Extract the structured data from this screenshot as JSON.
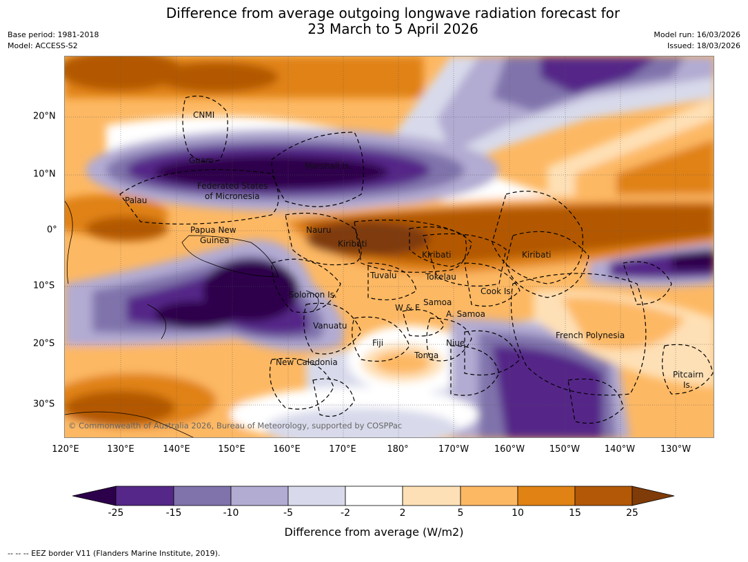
{
  "title_line1": "Difference from average outgoing longwave radiation forecast for",
  "title_line2": "23 March to 5 April 2026",
  "meta": {
    "base_period": "Base period: 1981-2018",
    "model": "Model: ACCESS-S2",
    "model_run": "Model run: 16/03/2026",
    "issued": "Issued: 18/03/2026"
  },
  "axes": {
    "lon_ticks": [
      "120°E",
      "130°E",
      "140°E",
      "150°E",
      "160°E",
      "170°E",
      "180°",
      "170°W",
      "160°W",
      "150°W",
      "140°W",
      "130°W"
    ],
    "lat_ticks": [
      "20°N",
      "10°N",
      "0°",
      "10°S",
      "20°S",
      "30°S"
    ]
  },
  "regions": {
    "cnmi": "CNMI",
    "guam": "Guam",
    "marshall": "Marshall Is.",
    "fsm1": "Federated States",
    "fsm2": "of Micronesia",
    "palau": "Palau",
    "png1": "Papua New",
    "png2": "Guinea",
    "nauru": "Nauru",
    "kiribati1": "Kiribati",
    "kiribati2": "Kiribati",
    "kiribati3": "Kiribati",
    "tuvalu": "Tuvalu",
    "tokelau": "Tokelau",
    "cook": "Cook Is.",
    "solomon": "Solomon Is.",
    "wf": "W & F",
    "samoa": "Samoa",
    "asamoa": "A. Samoa",
    "vanuatu": "Vanuatu",
    "fiji": "Fiji",
    "niue": "Niue",
    "tonga": "Tonga",
    "french_poly": "French Polynesia",
    "pitcairn1": "Pitcairn",
    "pitcairn2": "Is.",
    "new_caledonia": "New Caledonia"
  },
  "copyright": "© Commonwealth of Australia 2026, Bureau of Meteorology, supported by COSPPac",
  "colorbar": {
    "ticks": [
      "-25",
      "-15",
      "-10",
      "-5",
      "-2",
      "2",
      "5",
      "10",
      "15",
      "25"
    ],
    "label": "Difference from average (W/m2)",
    "colors": {
      "extend_low": "#2d004b",
      "b1": "#542788",
      "b2": "#8073ac",
      "b3": "#b2abd2",
      "b4": "#d8daeb",
      "b5": "#ffffff",
      "b6": "#fee0b6",
      "b7": "#fdb863",
      "b8": "#e08214",
      "b9": "#b35806",
      "extend_high": "#7f3b08"
    }
  },
  "footnote": "--  --  -- EEZ border V11 (Flanders Marine Institute, 2019)."
}
